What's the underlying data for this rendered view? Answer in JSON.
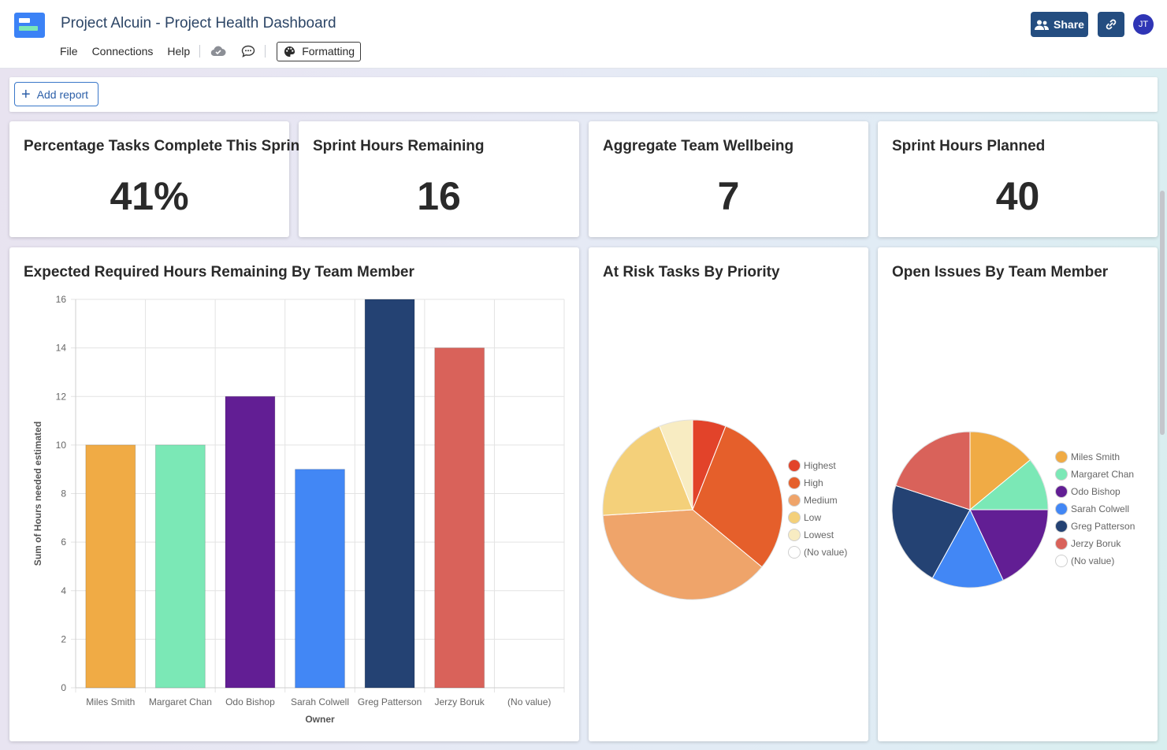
{
  "header": {
    "title": "Project Alcuin - Project Health Dashboard",
    "menu": [
      "File",
      "Connections",
      "Help"
    ],
    "formatting_label": "Formatting",
    "share_label": "Share",
    "avatar_initials": "JT",
    "icons": [
      "cloud-icon",
      "comment-icon",
      "palette-icon",
      "share-users-icon",
      "link-icon"
    ]
  },
  "toolbar": {
    "add_report_label": "Add report"
  },
  "kpis": [
    {
      "title": "Percentage Tasks Complete This Sprint",
      "value": "41%"
    },
    {
      "title": "Sprint Hours Remaining",
      "value": "16"
    },
    {
      "title": "Aggregate Team Wellbeing",
      "value": "7"
    },
    {
      "title": "Sprint Hours Planned",
      "value": "40"
    }
  ],
  "chart_data": [
    {
      "type": "bar",
      "title": "Expected Required Hours Remaining By Team Member",
      "xlabel": "Owner",
      "ylabel": "Sum of Hours needed estimated",
      "categories": [
        "Miles Smith",
        "Margaret Chan",
        "Odo Bishop",
        "Sarah Colwell",
        "Greg Patterson",
        "Jerzy Boruk",
        "(No value)"
      ],
      "values": [
        10,
        10,
        12,
        9,
        16,
        14,
        0
      ],
      "colors": [
        "#f0ab45",
        "#7be8b6",
        "#621e94",
        "#4287f5",
        "#244273",
        "#d9625a",
        "#cccccc"
      ],
      "yticks": [
        0,
        2,
        4,
        6,
        8,
        10,
        12,
        14,
        16
      ],
      "ylim": [
        0,
        16
      ],
      "grid": true
    },
    {
      "type": "pie",
      "title": "At Risk Tasks By Priority",
      "legend_position": "right",
      "labels": [
        "Highest",
        "High",
        "Medium",
        "Low",
        "Lowest",
        "(No value)"
      ],
      "values": [
        6,
        30,
        38,
        20,
        6,
        0
      ],
      "colors": [
        "#e2432a",
        "#e55f2b",
        "#efa46a",
        "#f4d07a",
        "#f8ecc2",
        "#ffffff"
      ]
    },
    {
      "type": "pie",
      "title": "Open Issues By Team Member",
      "legend_position": "right",
      "labels": [
        "Miles Smith",
        "Margaret Chan",
        "Odo Bishop",
        "Sarah Colwell",
        "Greg Patterson",
        "Jerzy Boruk",
        "(No value)"
      ],
      "values": [
        14,
        11,
        18,
        15,
        22,
        20,
        0
      ],
      "colors": [
        "#f0ab45",
        "#7be8b6",
        "#621e94",
        "#4287f5",
        "#244273",
        "#d9625a",
        "#ffffff"
      ]
    }
  ]
}
